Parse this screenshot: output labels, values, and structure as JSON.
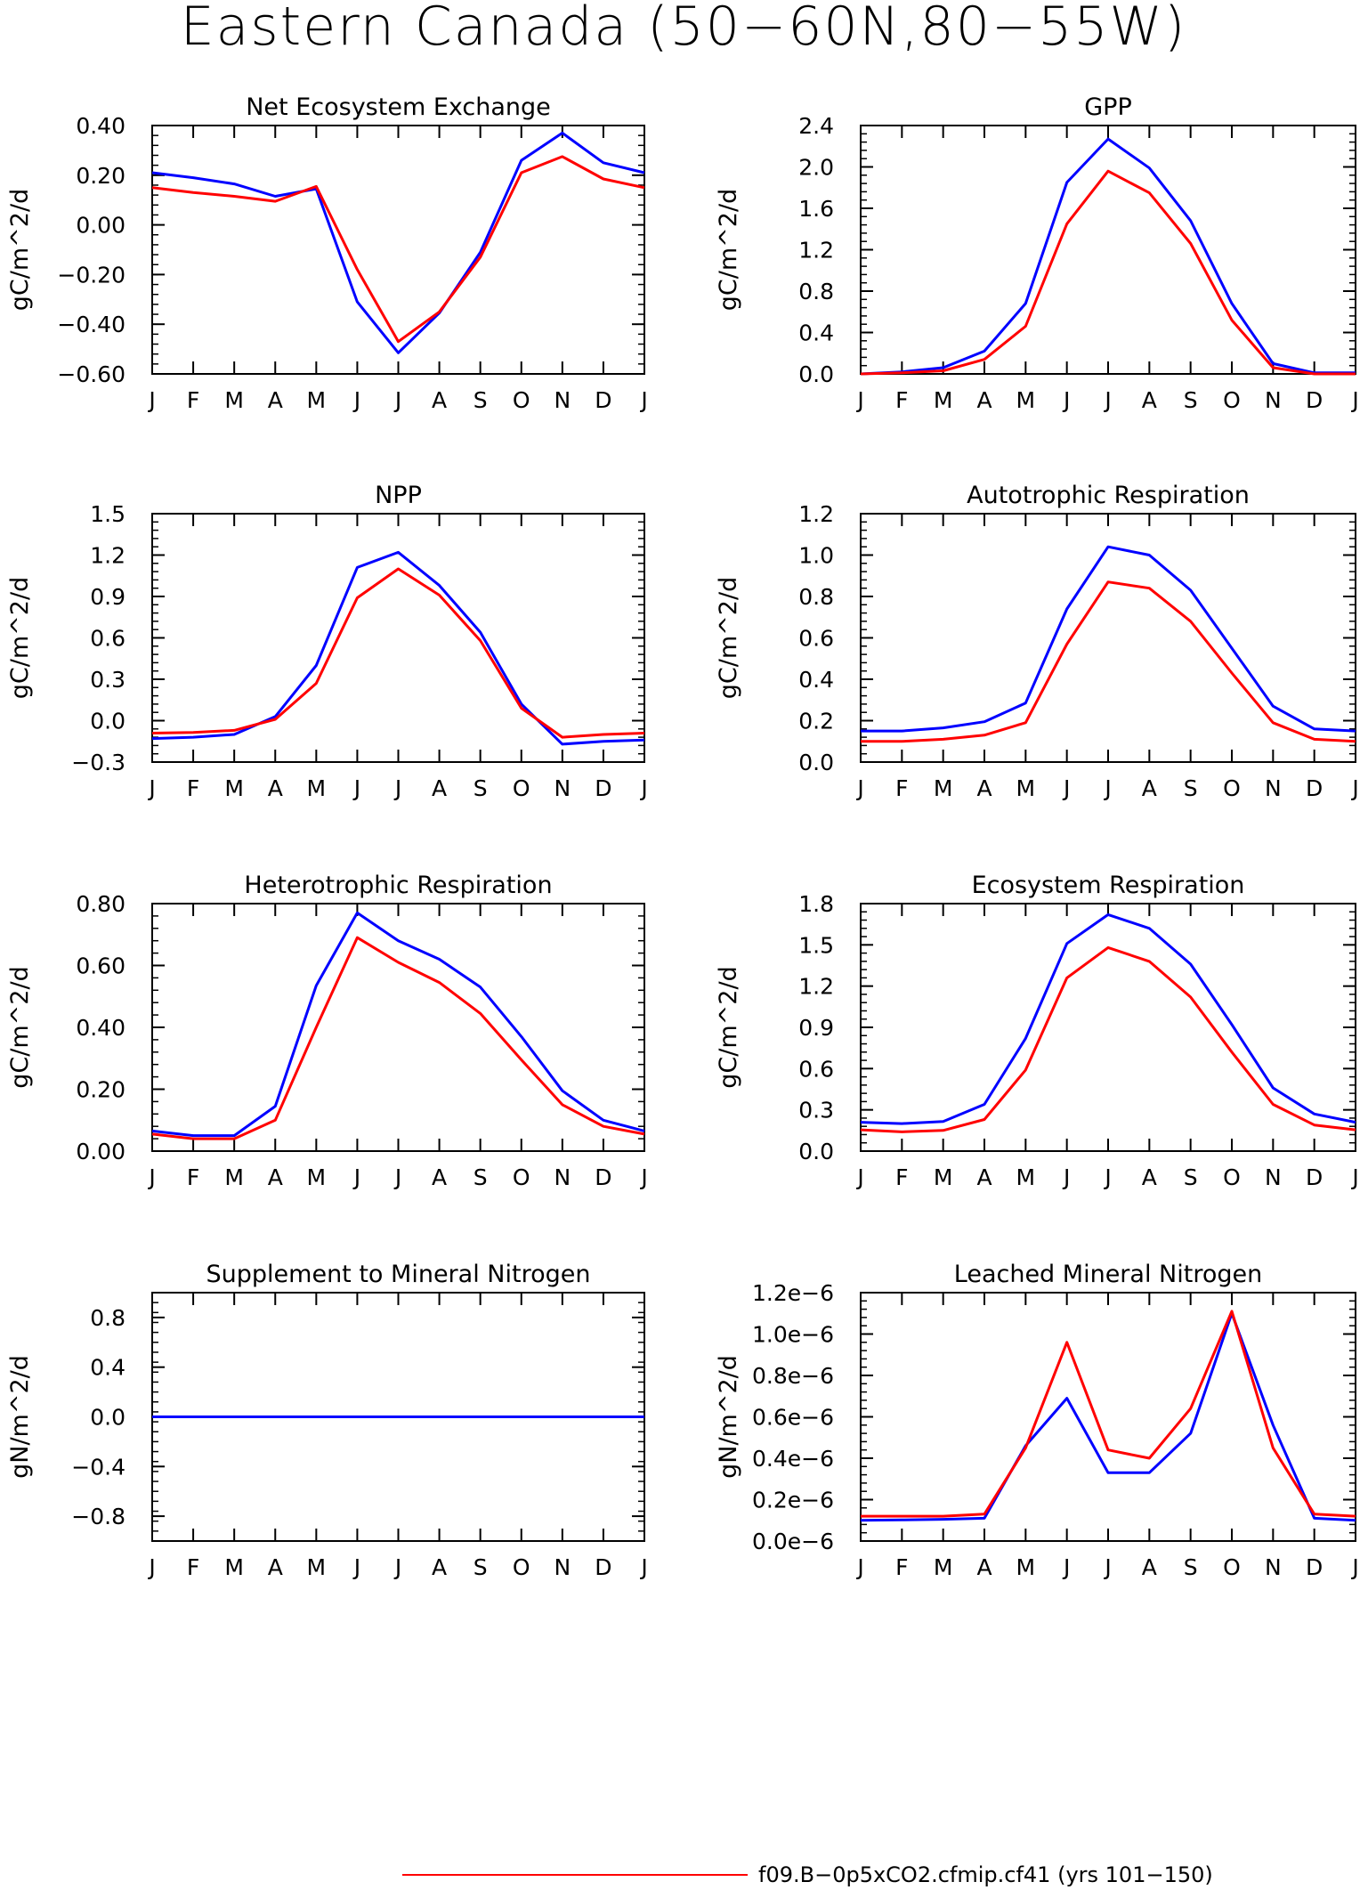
{
  "page_title": "Eastern Canada (50−60N,80−55W)",
  "legend": [
    {
      "label": "f09.B−0p5xCO2.cfmip.cf41 (yrs 101−150)",
      "color": "#ff0000"
    }
  ],
  "months": [
    "J",
    "F",
    "M",
    "A",
    "M",
    "J",
    "J",
    "A",
    "S",
    "O",
    "N",
    "D",
    "J"
  ],
  "colors": {
    "red": "#ff0000",
    "blue": "#0000ff"
  },
  "chart_data": [
    {
      "type": "line",
      "title": "Net Ecosystem Exchange",
      "ylabel": "gC/m^2/d",
      "ylim": [
        -0.6,
        0.4
      ],
      "yticks": [
        0.4,
        0.2,
        0.0,
        -0.2,
        -0.4,
        -0.6
      ],
      "yticklabels": [
        "0.40",
        "0.20",
        "0.00",
        "−0.20",
        "−0.40",
        "−0.60"
      ],
      "series": [
        {
          "color": "#0000ff",
          "values": [
            0.21,
            0.19,
            0.165,
            0.115,
            0.145,
            -0.31,
            -0.515,
            -0.355,
            -0.11,
            0.26,
            0.37,
            0.25,
            0.21
          ]
        },
        {
          "color": "#ff0000",
          "values": [
            0.15,
            0.13,
            0.115,
            0.095,
            0.155,
            -0.18,
            -0.47,
            -0.35,
            -0.13,
            0.21,
            0.275,
            0.185,
            0.15
          ]
        }
      ]
    },
    {
      "type": "line",
      "title": "GPP",
      "ylabel": "gC/m^2/d",
      "ylim": [
        0.0,
        2.4
      ],
      "yticks": [
        2.4,
        2.0,
        1.6,
        1.2,
        0.8,
        0.4,
        0.0
      ],
      "yticklabels": [
        "2.4",
        "2.0",
        "1.6",
        "1.2",
        "0.8",
        "0.4",
        "0.0"
      ],
      "series": [
        {
          "color": "#0000ff",
          "values": [
            0.0,
            0.02,
            0.06,
            0.22,
            0.68,
            1.85,
            2.27,
            1.99,
            1.48,
            0.68,
            0.1,
            0.01,
            0.01
          ]
        },
        {
          "color": "#ff0000",
          "values": [
            0.0,
            0.01,
            0.03,
            0.14,
            0.46,
            1.45,
            1.96,
            1.75,
            1.26,
            0.52,
            0.06,
            0.0,
            0.0
          ]
        }
      ]
    },
    {
      "type": "line",
      "title": "NPP",
      "ylabel": "gC/m^2/d",
      "ylim": [
        -0.3,
        1.5
      ],
      "yticks": [
        1.5,
        1.2,
        0.9,
        0.6,
        0.3,
        0.0,
        -0.3
      ],
      "yticklabels": [
        "1.5",
        "1.2",
        "0.9",
        "0.6",
        "0.3",
        "0.0",
        "−0.3"
      ],
      "series": [
        {
          "color": "#0000ff",
          "values": [
            -0.13,
            -0.12,
            -0.1,
            0.03,
            0.4,
            1.11,
            1.22,
            0.98,
            0.64,
            0.12,
            -0.17,
            -0.15,
            -0.14
          ]
        },
        {
          "color": "#ff0000",
          "values": [
            -0.09,
            -0.085,
            -0.07,
            0.01,
            0.27,
            0.89,
            1.1,
            0.91,
            0.58,
            0.09,
            -0.12,
            -0.1,
            -0.09
          ]
        }
      ]
    },
    {
      "type": "line",
      "title": "Autotrophic Respiration",
      "ylabel": "gC/m^2/d",
      "ylim": [
        0.0,
        1.2
      ],
      "yticks": [
        1.2,
        1.0,
        0.8,
        0.6,
        0.4,
        0.2,
        0.0
      ],
      "yticklabels": [
        "1.2",
        "1.0",
        "0.8",
        "0.6",
        "0.4",
        "0.2",
        "0.0"
      ],
      "series": [
        {
          "color": "#0000ff",
          "values": [
            0.15,
            0.15,
            0.165,
            0.195,
            0.285,
            0.74,
            1.04,
            1.0,
            0.83,
            0.55,
            0.27,
            0.16,
            0.15
          ]
        },
        {
          "color": "#ff0000",
          "values": [
            0.1,
            0.1,
            0.11,
            0.13,
            0.19,
            0.57,
            0.87,
            0.84,
            0.68,
            0.43,
            0.19,
            0.11,
            0.1
          ]
        }
      ]
    },
    {
      "type": "line",
      "title": "Heterotrophic Respiration",
      "ylabel": "gC/m^2/d",
      "ylim": [
        0.0,
        0.8
      ],
      "yticks": [
        0.8,
        0.6,
        0.4,
        0.2,
        0.0
      ],
      "yticklabels": [
        "0.80",
        "0.60",
        "0.40",
        "0.20",
        "0.00"
      ],
      "series": [
        {
          "color": "#0000ff",
          "values": [
            0.065,
            0.05,
            0.05,
            0.145,
            0.535,
            0.77,
            0.68,
            0.62,
            0.53,
            0.37,
            0.195,
            0.1,
            0.065
          ]
        },
        {
          "color": "#ff0000",
          "values": [
            0.055,
            0.04,
            0.04,
            0.1,
            0.4,
            0.69,
            0.61,
            0.545,
            0.445,
            0.295,
            0.15,
            0.08,
            0.055
          ]
        }
      ]
    },
    {
      "type": "line",
      "title": "Ecosystem Respiration",
      "ylabel": "gC/m^2/d",
      "ylim": [
        0.0,
        1.8
      ],
      "yticks": [
        1.8,
        1.5,
        1.2,
        0.9,
        0.6,
        0.3,
        0.0
      ],
      "yticklabels": [
        "1.8",
        "1.5",
        "1.2",
        "0.9",
        "0.6",
        "0.3",
        "0.0"
      ],
      "series": [
        {
          "color": "#0000ff",
          "values": [
            0.21,
            0.2,
            0.215,
            0.34,
            0.82,
            1.51,
            1.72,
            1.62,
            1.36,
            0.92,
            0.46,
            0.27,
            0.21
          ]
        },
        {
          "color": "#ff0000",
          "values": [
            0.155,
            0.14,
            0.15,
            0.23,
            0.59,
            1.26,
            1.48,
            1.38,
            1.12,
            0.72,
            0.34,
            0.19,
            0.155
          ]
        }
      ]
    },
    {
      "type": "line",
      "title": "Supplement to Mineral Nitrogen",
      "ylabel": "gN/m^2/d",
      "ylim": [
        -1.0,
        1.0
      ],
      "yticks": [
        0.8,
        0.4,
        0.0,
        -0.4,
        -0.8
      ],
      "yticklabels": [
        "0.8",
        "0.4",
        "0.0",
        "−0.4",
        "−0.8"
      ],
      "series": [
        {
          "color": "#ff0000",
          "values": [
            0,
            0,
            0,
            0,
            0,
            0,
            0,
            0,
            0,
            0,
            0,
            0,
            0
          ]
        },
        {
          "color": "#0000ff",
          "values": [
            0,
            0,
            0,
            0,
            0,
            0,
            0,
            0,
            0,
            0,
            0,
            0,
            0
          ]
        }
      ]
    },
    {
      "type": "line",
      "title": "Leached Mineral Nitrogen",
      "ylabel": "gN/m^2/d",
      "ylim": [
        0.0,
        1.2e-06
      ],
      "yticks": [
        1.2e-06,
        1e-06,
        8e-07,
        6e-07,
        4e-07,
        2e-07,
        0.0
      ],
      "yticklabels": [
        "1.2e−6",
        "1.0e−6",
        "0.8e−6",
        "0.6e−6",
        "0.4e−6",
        "0.2e−6",
        "0.0e−6"
      ],
      "series": [
        {
          "color": "#0000ff",
          "values": [
            1e-07,
            1.02e-07,
            1.05e-07,
            1.1e-07,
            4.6e-07,
            6.9e-07,
            3.3e-07,
            3.3e-07,
            5.2e-07,
            1.1e-06,
            5.6e-07,
            1.1e-07,
            1e-07
          ]
        },
        {
          "color": "#ff0000",
          "values": [
            1.2e-07,
            1.2e-07,
            1.2e-07,
            1.3e-07,
            4.5e-07,
            9.6e-07,
            4.4e-07,
            4e-07,
            6.4e-07,
            1.11e-06,
            4.5e-07,
            1.3e-07,
            1.2e-07
          ]
        }
      ]
    }
  ]
}
